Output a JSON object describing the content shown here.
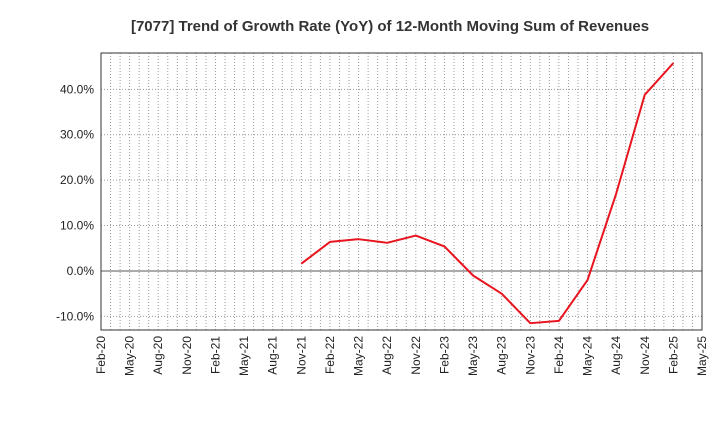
{
  "chart_data": {
    "type": "line",
    "title": "[7077]  Trend of Growth Rate (YoY) of 12-Month Moving Sum of Revenues",
    "xlabel": "",
    "ylabel": "",
    "ylim": [
      -13,
      48
    ],
    "yticks": [
      -10,
      0,
      10,
      20,
      30,
      40
    ],
    "ytick_labels": [
      "-10.0%",
      "0.0%",
      "10.0%",
      "20.0%",
      "30.0%",
      "40.0%"
    ],
    "categories": [
      "Feb-20",
      "May-20",
      "Aug-20",
      "Nov-20",
      "Feb-21",
      "May-21",
      "Aug-21",
      "Nov-21",
      "Feb-22",
      "May-22",
      "Aug-22",
      "Nov-22",
      "Feb-23",
      "May-23",
      "Aug-23",
      "Nov-23",
      "Feb-24",
      "May-24",
      "Aug-24",
      "Nov-24",
      "Feb-25",
      "May-25"
    ],
    "grid": true,
    "line_color": "#e8141e",
    "series": [
      {
        "values": [
          null,
          null,
          null,
          null,
          null,
          null,
          null,
          1.6,
          6.4,
          7.0,
          6.2,
          7.8,
          5.4,
          -1.0,
          -5.0,
          -11.5,
          -11.0,
          -2.0,
          17.0,
          38.8,
          45.8,
          null
        ]
      }
    ]
  }
}
